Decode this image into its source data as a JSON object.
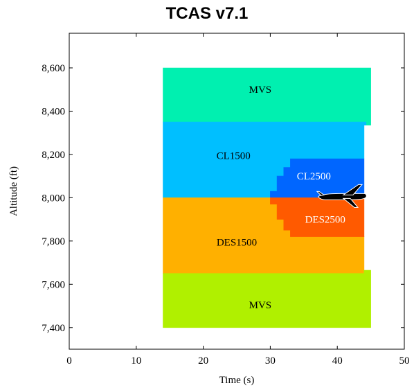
{
  "chart_data": {
    "type": "area",
    "title": "TCAS v7.1",
    "xlabel": "Time (s)",
    "ylabel": "Altitude (ft)",
    "xlim": [
      0,
      50
    ],
    "ylim": [
      7300,
      8760
    ],
    "xticks": [
      0,
      10,
      20,
      30,
      40,
      50
    ],
    "xtick_labels": [
      "0",
      "10",
      "20",
      "30",
      "40",
      "50"
    ],
    "yticks": [
      7400,
      7600,
      7800,
      8000,
      8200,
      8400,
      8600
    ],
    "ytick_labels": [
      "7,400",
      "7,600",
      "7,800",
      "8,000",
      "8,200",
      "8,400",
      "8,600"
    ],
    "grid": false,
    "regions": [
      {
        "label": "MVS",
        "color": "#00F0B0",
        "label_color": "#000000",
        "label_at": [
          28.5,
          8500
        ],
        "polygon": [
          [
            14,
            8350
          ],
          [
            44.3,
            8350
          ],
          [
            44.3,
            8335
          ],
          [
            45,
            8335
          ],
          [
            45,
            8600
          ],
          [
            14,
            8600
          ]
        ]
      },
      {
        "label": "CL1500",
        "color": "#00BFFF",
        "label_color": "#000000",
        "label_at": [
          24.5,
          8195
        ],
        "polygon": [
          [
            14,
            8000
          ],
          [
            30,
            8000
          ],
          [
            30,
            8030
          ],
          [
            31,
            8030
          ],
          [
            31,
            8100
          ],
          [
            32,
            8100
          ],
          [
            32,
            8140
          ],
          [
            33,
            8140
          ],
          [
            33,
            8180
          ],
          [
            44,
            8180
          ],
          [
            44,
            8335
          ],
          [
            44.3,
            8335
          ],
          [
            44.3,
            8350
          ],
          [
            14,
            8350
          ]
        ]
      },
      {
        "label": "CL2500",
        "color": "#0066FF",
        "label_color": "#FFFFFF",
        "label_at": [
          36.5,
          8100
        ],
        "polygon": [
          [
            30,
            8000
          ],
          [
            44,
            8000
          ],
          [
            44,
            8180
          ],
          [
            33,
            8180
          ],
          [
            33,
            8140
          ],
          [
            32,
            8140
          ],
          [
            32,
            8100
          ],
          [
            31,
            8100
          ],
          [
            31,
            8030
          ],
          [
            30,
            8030
          ]
        ]
      },
      {
        "label": "DES1500",
        "color": "#FFB000",
        "label_color": "#000000",
        "label_at": [
          25,
          7795
        ],
        "polygon": [
          [
            14,
            7650
          ],
          [
            44,
            7650
          ],
          [
            44,
            7820
          ],
          [
            33,
            7820
          ],
          [
            33,
            7850
          ],
          [
            32,
            7850
          ],
          [
            32,
            7900
          ],
          [
            31,
            7900
          ],
          [
            31,
            7970
          ],
          [
            30,
            7970
          ],
          [
            30,
            8000
          ],
          [
            14,
            8000
          ]
        ]
      },
      {
        "label": "DES2500",
        "color": "#FF5A00",
        "label_color": "#FFFFFF",
        "label_at": [
          38.2,
          7900
        ],
        "polygon": [
          [
            30,
            7970
          ],
          [
            31,
            7970
          ],
          [
            31,
            7900
          ],
          [
            32,
            7900
          ],
          [
            32,
            7850
          ],
          [
            33,
            7850
          ],
          [
            33,
            7820
          ],
          [
            44,
            7820
          ],
          [
            44,
            8000
          ],
          [
            30,
            8000
          ]
        ]
      },
      {
        "label": "MVS",
        "color": "#B0F000",
        "label_color": "#000000",
        "label_at": [
          28.5,
          7505
        ],
        "polygon": [
          [
            14,
            7400
          ],
          [
            45,
            7400
          ],
          [
            45,
            7665
          ],
          [
            44,
            7665
          ],
          [
            44,
            7650
          ],
          [
            14,
            7650
          ]
        ]
      }
    ],
    "aircraft": {
      "icon": "airplane-icon",
      "x": 44,
      "y": 8000
    }
  }
}
